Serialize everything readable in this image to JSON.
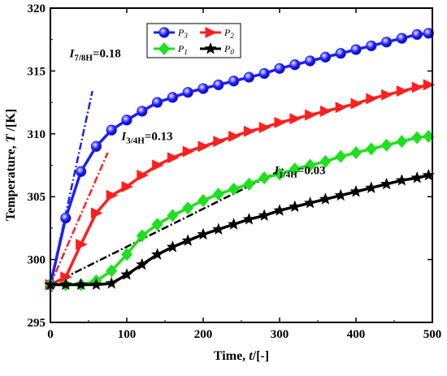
{
  "chart_data": {
    "type": "line",
    "xlabel_prefix": "Time, ",
    "xlabel_var": "t",
    "xlabel_unit": "/[-]",
    "ylabel_prefix": "Temperature, ",
    "ylabel_var": "T",
    "ylabel_unit": " /[K]",
    "xlim": [
      0,
      500
    ],
    "ylim": [
      295,
      320
    ],
    "xticks": [
      0,
      100,
      200,
      300,
      400,
      500
    ],
    "yticks": [
      295,
      300,
      305,
      310,
      315,
      320
    ],
    "grid": false,
    "legend_position": "top-center",
    "series": [
      {
        "name": "P3",
        "name_main": "P",
        "name_sub": "3",
        "color": "#1f1fff",
        "marker": "circle",
        "x": [
          0,
          20,
          40,
          60,
          80,
          100,
          120,
          140,
          160,
          180,
          200,
          220,
          240,
          260,
          280,
          300,
          320,
          340,
          360,
          380,
          400,
          420,
          440,
          460,
          480,
          495
        ],
        "y": [
          298,
          303.3,
          307,
          309,
          310.3,
          311.1,
          311.8,
          312.5,
          312.9,
          313.3,
          313.6,
          313.9,
          314.2,
          314.5,
          314.8,
          315.2,
          315.5,
          315.8,
          316.1,
          316.4,
          316.7,
          317,
          317.3,
          317.6,
          317.9,
          318
        ]
      },
      {
        "name": "P2",
        "name_main": "P",
        "name_sub": "2",
        "color": "#ff1f1f",
        "marker": "triangle-right",
        "x": [
          0,
          20,
          40,
          60,
          80,
          100,
          120,
          140,
          160,
          180,
          200,
          220,
          240,
          260,
          280,
          300,
          320,
          340,
          360,
          380,
          400,
          420,
          440,
          460,
          480,
          495
        ],
        "y": [
          298,
          298.6,
          301.2,
          303.7,
          305.1,
          305.8,
          306.7,
          307.5,
          308.1,
          308.6,
          309,
          309.4,
          309.8,
          310.2,
          310.5,
          310.9,
          311.2,
          311.5,
          311.8,
          312.1,
          312.4,
          312.8,
          313.1,
          313.4,
          313.7,
          313.9
        ]
      },
      {
        "name": "P1",
        "name_main": "P",
        "name_sub": "1",
        "color": "#1fe01f",
        "marker": "diamond",
        "x": [
          0,
          20,
          40,
          60,
          80,
          100,
          120,
          140,
          160,
          180,
          200,
          220,
          240,
          260,
          280,
          300,
          320,
          340,
          360,
          380,
          400,
          420,
          440,
          460,
          480,
          495
        ],
        "y": [
          298,
          298,
          298,
          298.3,
          299.1,
          300.4,
          301.9,
          302.8,
          303.5,
          304.1,
          304.7,
          305.2,
          305.6,
          306,
          306.5,
          306.8,
          307.2,
          307.5,
          307.8,
          308.2,
          308.5,
          308.8,
          309.1,
          309.4,
          309.7,
          309.8
        ]
      },
      {
        "name": "P0",
        "name_main": "P",
        "name_sub": "0",
        "color": "#000000",
        "marker": "star",
        "x": [
          0,
          20,
          40,
          60,
          80,
          100,
          120,
          140,
          160,
          180,
          200,
          220,
          240,
          260,
          280,
          300,
          320,
          340,
          360,
          380,
          400,
          420,
          440,
          460,
          480,
          495
        ],
        "y": [
          298,
          298,
          298,
          298,
          298.1,
          298.8,
          299.6,
          300.4,
          301,
          301.5,
          302,
          302.4,
          302.8,
          303.2,
          303.5,
          303.9,
          304.2,
          304.5,
          304.8,
          305.1,
          305.4,
          305.7,
          306,
          306.3,
          306.5,
          306.7
        ]
      }
    ],
    "tangents": [
      {
        "color": "#1f1fff",
        "x": [
          0,
          55
        ],
        "y": [
          298,
          313.4
        ]
      },
      {
        "color": "#ff1f1f",
        "x": [
          0,
          75
        ],
        "y": [
          298,
          308.5
        ]
      },
      {
        "color": "#000000",
        "x": [
          0,
          305
        ],
        "y": [
          298,
          307.2
        ]
      }
    ],
    "annotations": [
      {
        "name": "anno-7-8h",
        "main": "I",
        "sub": "7/8H",
        "rest": "=0.18",
        "x": 25,
        "y": 316.1
      },
      {
        "name": "anno-3-4h",
        "main": "I",
        "sub": "3/4H",
        "rest": "=0.13",
        "x": 93,
        "y": 309.5
      },
      {
        "name": "anno-1-4h",
        "main": "I",
        "sub": "1/4H",
        "rest": "=0.03",
        "x": 293,
        "y": 306.8
      }
    ]
  }
}
